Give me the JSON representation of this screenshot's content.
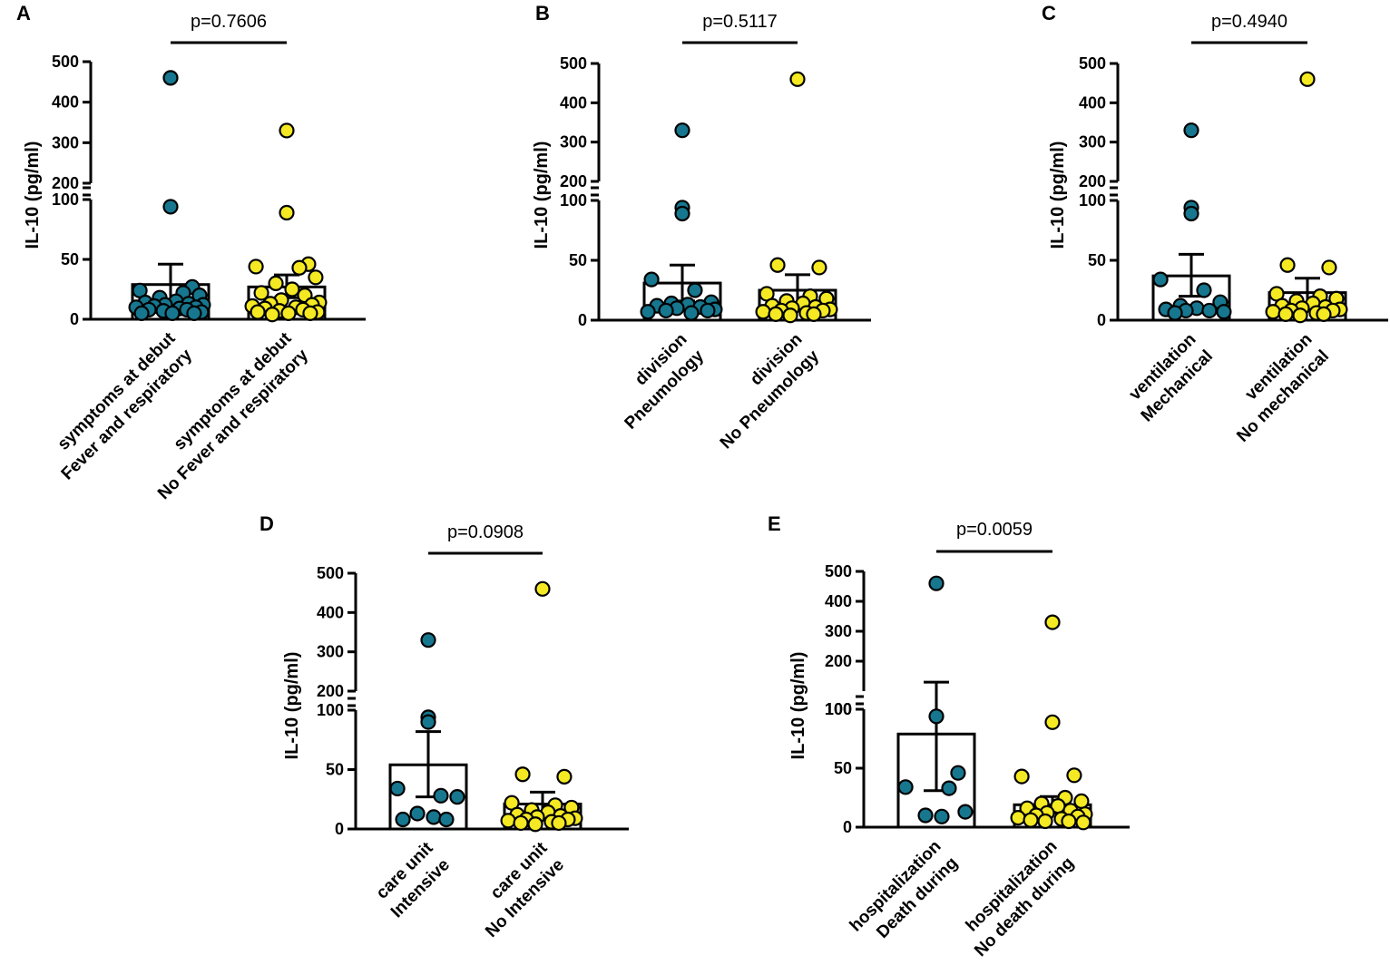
{
  "colors": {
    "group1": "#16778f",
    "group2": "#f4e922",
    "axis": "#000000",
    "bar": "#ffffff"
  },
  "chart_data": [
    {
      "type": "bar-scatter",
      "panel": "A",
      "ylabel": "IL-10 (pg/ml)",
      "p_value": "p=0.7606",
      "y_axis": {
        "lower_range": [
          0,
          100
        ],
        "lower_ticks": [
          0,
          50,
          100
        ],
        "upper_range": [
          200,
          500
        ],
        "upper_ticks": [
          200,
          300,
          400,
          500
        ],
        "broken": true
      },
      "categories": [
        {
          "lines": [
            "Fever and respiratory",
            "symptoms at debut"
          ]
        },
        {
          "lines": [
            "No Fever and respiratory",
            "symptoms at debut"
          ]
        }
      ],
      "series": [
        {
          "name": "Fever and respiratory symptoms at debut",
          "color": "group1",
          "mean": 29,
          "err_high": 46,
          "err_low": 14,
          "points": [
            460,
            94,
            27,
            24,
            22,
            20,
            18,
            15,
            14,
            13,
            12,
            12,
            11,
            10,
            10,
            9,
            8,
            8,
            7,
            6,
            5,
            5,
            5
          ]
        },
        {
          "name": "No Fever and respiratory symptoms at debut",
          "color": "group2",
          "mean": 27,
          "err_high": 37,
          "err_low": 18,
          "points": [
            330,
            89,
            46,
            44,
            43,
            35,
            30,
            25,
            22,
            20,
            16,
            14,
            13,
            12,
            11,
            10,
            9,
            8,
            7,
            6,
            6,
            5,
            5,
            4
          ]
        }
      ]
    },
    {
      "type": "bar-scatter",
      "panel": "B",
      "ylabel": "IL-10 (pg/ml)",
      "p_value": "p=0.5117",
      "y_axis": {
        "lower_range": [
          0,
          100
        ],
        "lower_ticks": [
          0,
          50,
          100
        ],
        "upper_range": [
          200,
          500
        ],
        "upper_ticks": [
          200,
          300,
          400,
          500
        ],
        "broken": true
      },
      "categories": [
        {
          "lines": [
            "Pneumology",
            "division"
          ]
        },
        {
          "lines": [
            "No Pneumology",
            "division"
          ]
        }
      ],
      "series": [
        {
          "name": "Pneumology division",
          "color": "group1",
          "mean": 31,
          "err_high": 46,
          "err_low": 16,
          "points": [
            330,
            94,
            89,
            34,
            25,
            15,
            14,
            13,
            12,
            11,
            10,
            9,
            8,
            8,
            7,
            6
          ]
        },
        {
          "name": "No Pneumology division",
          "color": "group2",
          "mean": 25,
          "err_high": 38,
          "err_low": 14,
          "points": [
            460,
            46,
            44,
            22,
            20,
            18,
            16,
            14,
            12,
            11,
            10,
            9,
            8,
            8,
            7,
            6,
            5,
            5,
            4
          ]
        }
      ]
    },
    {
      "type": "bar-scatter",
      "panel": "C",
      "ylabel": "IL-10 (pg/ml)",
      "p_value": "p=0.4940",
      "y_axis": {
        "lower_range": [
          0,
          100
        ],
        "lower_ticks": [
          0,
          50,
          100
        ],
        "upper_range": [
          200,
          500
        ],
        "upper_ticks": [
          200,
          300,
          400,
          500
        ],
        "broken": true
      },
      "categories": [
        {
          "lines": [
            "Mechanical",
            "ventilation"
          ]
        },
        {
          "lines": [
            "No mechanical",
            "ventilation"
          ]
        }
      ],
      "series": [
        {
          "name": "Mechanical ventilation",
          "color": "group1",
          "mean": 37,
          "err_high": 55,
          "err_low": 20,
          "points": [
            330,
            94,
            89,
            34,
            25,
            15,
            12,
            10,
            9,
            8,
            8,
            7,
            6
          ]
        },
        {
          "name": "No mechanical ventilation",
          "color": "group2",
          "mean": 23,
          "err_high": 35,
          "err_low": 13,
          "points": [
            460,
            46,
            44,
            22,
            20,
            18,
            16,
            14,
            12,
            11,
            10,
            9,
            8,
            8,
            7,
            6,
            5,
            5,
            4
          ]
        }
      ]
    },
    {
      "type": "bar-scatter",
      "panel": "D",
      "ylabel": "IL-10 (pg/ml)",
      "p_value": "p=0.0908",
      "y_axis": {
        "lower_range": [
          0,
          100
        ],
        "lower_ticks": [
          0,
          50,
          100
        ],
        "upper_range": [
          200,
          500
        ],
        "upper_ticks": [
          200,
          300,
          400,
          500
        ],
        "broken": true
      },
      "categories": [
        {
          "lines": [
            "Intensive",
            "care unit"
          ]
        },
        {
          "lines": [
            "No Intensive",
            "care unit"
          ]
        }
      ],
      "series": [
        {
          "name": "Intensive care unit",
          "color": "group1",
          "mean": 54,
          "err_high": 82,
          "err_low": 27,
          "points": [
            330,
            94,
            90,
            34,
            28,
            27,
            13,
            10,
            8,
            8
          ]
        },
        {
          "name": "No Intensive care unit",
          "color": "group2",
          "mean": 21,
          "err_high": 31,
          "err_low": 12,
          "points": [
            460,
            46,
            44,
            22,
            20,
            18,
            16,
            14,
            12,
            11,
            10,
            9,
            8,
            8,
            7,
            6,
            5,
            5,
            4
          ]
        }
      ]
    },
    {
      "type": "bar-scatter",
      "panel": "E",
      "ylabel": "IL-10 (pg/ml)",
      "p_value": "p=0.0059",
      "y_axis": {
        "lower_range": [
          0,
          100
        ],
        "lower_ticks": [
          0,
          50,
          100
        ],
        "upper_range": [
          100,
          500
        ],
        "upper_ticks": [
          100,
          200,
          300,
          400,
          500
        ],
        "broken": true
      },
      "categories": [
        {
          "lines": [
            "Death during",
            "hospitalization"
          ]
        },
        {
          "lines": [
            "No death during",
            "hospitalization"
          ]
        }
      ],
      "series": [
        {
          "name": "Death during hospitalization",
          "color": "group1",
          "mean": 79,
          "err_high": 130,
          "err_low": 31,
          "points": [
            460,
            94,
            46,
            34,
            33,
            13,
            10,
            9
          ]
        },
        {
          "name": "No death during hospitalization",
          "color": "group2",
          "mean": 19,
          "err_high": 26,
          "err_low": 12,
          "points": [
            330,
            89,
            44,
            43,
            25,
            22,
            20,
            18,
            16,
            14,
            12,
            11,
            10,
            9,
            8,
            7,
            6,
            5,
            5,
            4
          ]
        }
      ]
    }
  ]
}
